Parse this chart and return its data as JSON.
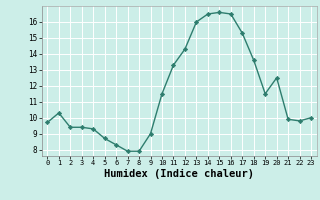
{
  "x": [
    0,
    1,
    2,
    3,
    4,
    5,
    6,
    7,
    8,
    9,
    10,
    11,
    12,
    13,
    14,
    15,
    16,
    17,
    18,
    19,
    20,
    21,
    22,
    23
  ],
  "y": [
    9.7,
    10.3,
    9.4,
    9.4,
    9.3,
    8.7,
    8.3,
    7.9,
    7.9,
    9.0,
    11.5,
    13.3,
    14.3,
    16.0,
    16.5,
    16.6,
    16.5,
    15.3,
    13.6,
    11.5,
    12.5,
    9.9,
    9.8,
    10.0
  ],
  "line_color": "#2e7d6e",
  "marker": "D",
  "marker_size": 2.2,
  "background_color": "#cceee8",
  "grid_color": "#ffffff",
  "xlabel": "Humidex (Indice chaleur)",
  "xlabel_fontsize": 7.5,
  "ylabel_ticks": [
    8,
    9,
    10,
    11,
    12,
    13,
    14,
    15,
    16
  ],
  "xtick_labels": [
    "0",
    "1",
    "2",
    "3",
    "4",
    "5",
    "6",
    "7",
    "8",
    "9",
    "10",
    "11",
    "12",
    "13",
    "14",
    "15",
    "16",
    "17",
    "18",
    "19",
    "20",
    "21",
    "22",
    "23"
  ],
  "ylim": [
    7.6,
    17.0
  ],
  "xlim": [
    -0.5,
    23.5
  ]
}
